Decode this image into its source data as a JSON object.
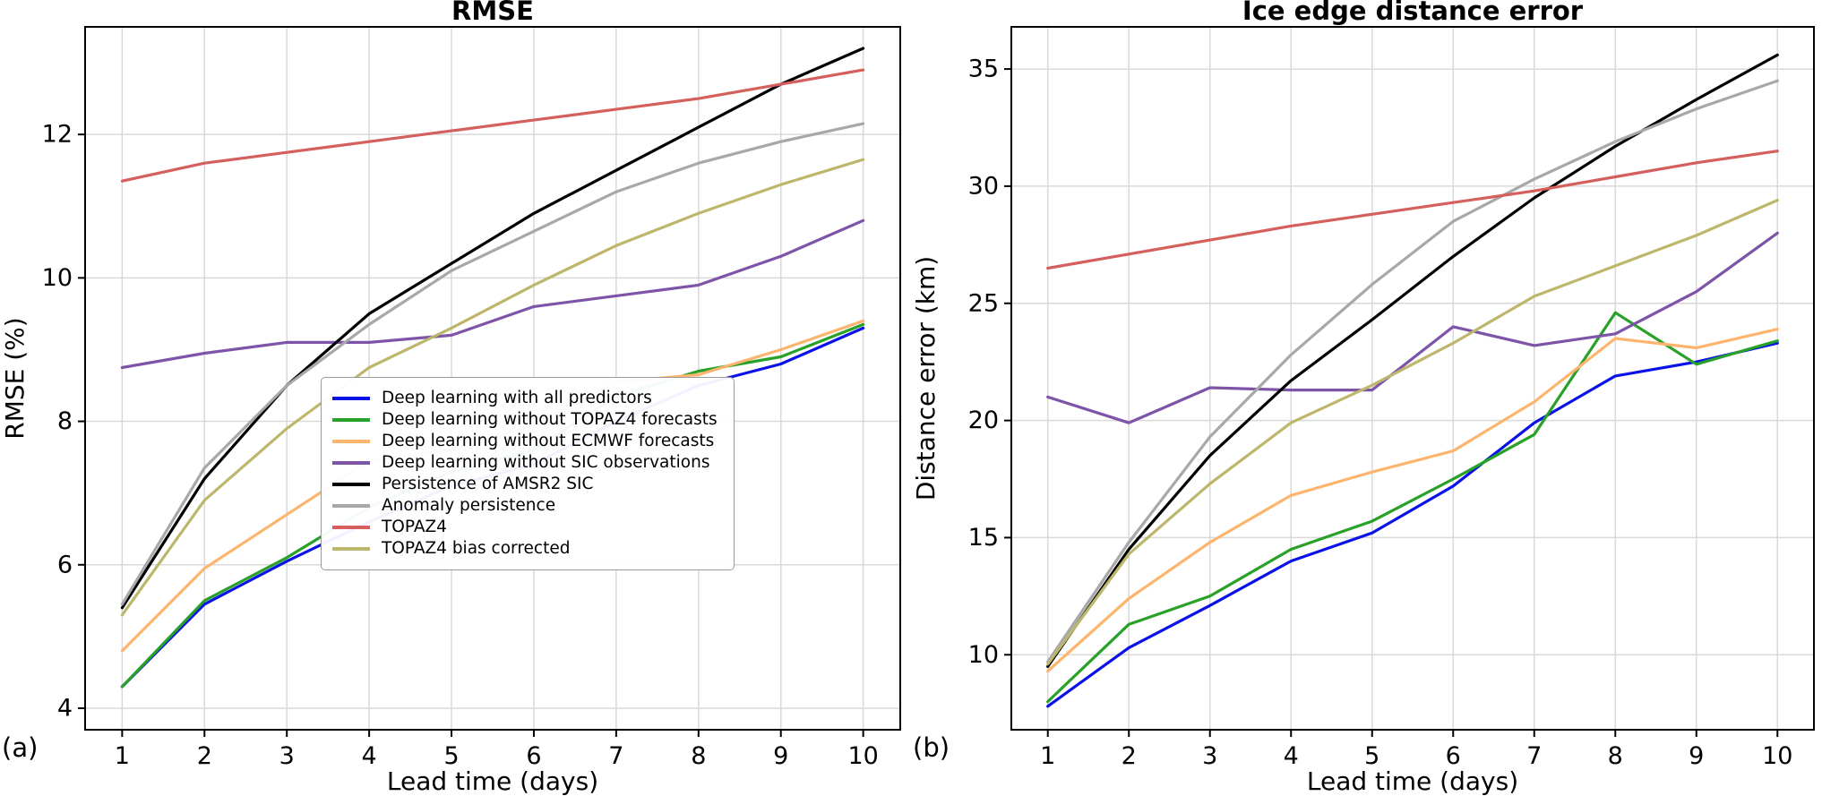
{
  "figure": {
    "background": "#ffffff",
    "panel_a_label": "(a)",
    "panel_b_label": "(b)"
  },
  "chart_data": [
    {
      "type": "line",
      "panel": "a",
      "title": "RMSE",
      "xlabel": "Lead time (days)",
      "ylabel": "RMSE (%)",
      "grid": true,
      "legend_location": "lower right inside panel",
      "x": [
        1,
        2,
        3,
        4,
        5,
        6,
        7,
        8,
        9,
        10
      ],
      "xticks": [
        1,
        2,
        3,
        4,
        5,
        6,
        7,
        8,
        9,
        10
      ],
      "yticks": [
        4,
        6,
        8,
        10,
        12
      ],
      "xlim": [
        0.55,
        10.45
      ],
      "ylim": [
        3.7,
        13.5
      ],
      "series": [
        {
          "name": "Deep learning with all predictors",
          "color": "#0a12e8",
          "values": [
            4.3,
            5.45,
            6.05,
            6.6,
            7.1,
            7.4,
            8.0,
            8.5,
            8.8,
            9.3
          ]
        },
        {
          "name": "Deep learning without TOPAZ4 forecasts",
          "color": "#28a128",
          "values": [
            4.3,
            5.5,
            6.1,
            6.8,
            7.3,
            7.6,
            8.35,
            8.7,
            8.9,
            9.35
          ]
        },
        {
          "name": "Deep learning without ECMWF forecasts",
          "color": "#fdb56e",
          "values": [
            4.8,
            5.95,
            6.7,
            7.45,
            7.6,
            7.95,
            8.55,
            8.65,
            9.0,
            9.4
          ]
        },
        {
          "name": "Deep learning without SIC observations",
          "color": "#7d54a8",
          "values": [
            8.75,
            8.95,
            9.1,
            9.1,
            9.2,
            9.6,
            9.75,
            9.9,
            10.3,
            10.8
          ]
        },
        {
          "name": "Persistence of AMSR2 SIC",
          "color": "#000000",
          "values": [
            5.4,
            7.2,
            8.5,
            9.5,
            10.2,
            10.9,
            11.5,
            12.1,
            12.7,
            13.2
          ]
        },
        {
          "name": "Anomaly persistence",
          "color": "#a8a8a8",
          "values": [
            5.45,
            7.35,
            8.5,
            9.35,
            10.1,
            10.65,
            11.2,
            11.6,
            11.9,
            12.15
          ]
        },
        {
          "name": "TOPAZ4",
          "color": "#d45f5c",
          "values": [
            11.35,
            11.6,
            11.75,
            11.9,
            12.05,
            12.2,
            12.35,
            12.5,
            12.7,
            12.9
          ]
        },
        {
          "name": "TOPAZ4 bias corrected",
          "color": "#bdb76b",
          "values": [
            5.3,
            6.9,
            7.9,
            8.75,
            9.3,
            9.9,
            10.45,
            10.9,
            11.3,
            11.65
          ]
        }
      ]
    },
    {
      "type": "line",
      "panel": "b",
      "title": "Ice edge distance error",
      "xlabel": "Lead time (days)",
      "ylabel": "Distance error (km)",
      "grid": true,
      "x": [
        1,
        2,
        3,
        4,
        5,
        6,
        7,
        8,
        9,
        10
      ],
      "xticks": [
        1,
        2,
        3,
        4,
        5,
        6,
        7,
        8,
        9,
        10
      ],
      "yticks": [
        10,
        15,
        20,
        25,
        30,
        35
      ],
      "xlim": [
        0.55,
        10.45
      ],
      "ylim": [
        6.8,
        36.8
      ],
      "series": [
        {
          "name": "Deep learning with all predictors",
          "color": "#0a12e8",
          "values": [
            7.8,
            10.3,
            12.1,
            14.0,
            15.2,
            17.2,
            19.9,
            21.9,
            22.5,
            23.3
          ]
        },
        {
          "name": "Deep learning without TOPAZ4 forecasts",
          "color": "#28a128",
          "values": [
            8.0,
            11.3,
            12.5,
            14.5,
            15.7,
            17.5,
            19.4,
            24.6,
            22.4,
            23.4
          ]
        },
        {
          "name": "Deep learning without ECMWF forecasts",
          "color": "#fdb56e",
          "values": [
            9.3,
            12.4,
            14.8,
            16.8,
            17.8,
            18.7,
            20.8,
            23.5,
            23.1,
            23.9
          ]
        },
        {
          "name": "Deep learning without SIC observations",
          "color": "#7d54a8",
          "values": [
            21.0,
            19.9,
            21.4,
            21.3,
            21.3,
            24.0,
            23.2,
            23.7,
            25.5,
            28.0
          ]
        },
        {
          "name": "Persistence of AMSR2 SIC",
          "color": "#000000",
          "values": [
            9.5,
            14.5,
            18.5,
            21.7,
            24.3,
            27.0,
            29.5,
            31.7,
            33.7,
            35.6
          ]
        },
        {
          "name": "Anomaly persistence",
          "color": "#a8a8a8",
          "values": [
            9.7,
            14.8,
            19.3,
            22.8,
            25.8,
            28.5,
            30.3,
            31.9,
            33.3,
            34.5
          ]
        },
        {
          "name": "TOPAZ4",
          "color": "#d45f5c",
          "values": [
            26.5,
            27.1,
            27.7,
            28.3,
            28.8,
            29.3,
            29.8,
            30.4,
            31.0,
            31.5
          ]
        },
        {
          "name": "TOPAZ4 bias corrected",
          "color": "#bdb76b",
          "values": [
            9.6,
            14.3,
            17.3,
            19.9,
            21.5,
            23.3,
            25.3,
            26.6,
            27.9,
            29.4
          ]
        }
      ]
    }
  ]
}
